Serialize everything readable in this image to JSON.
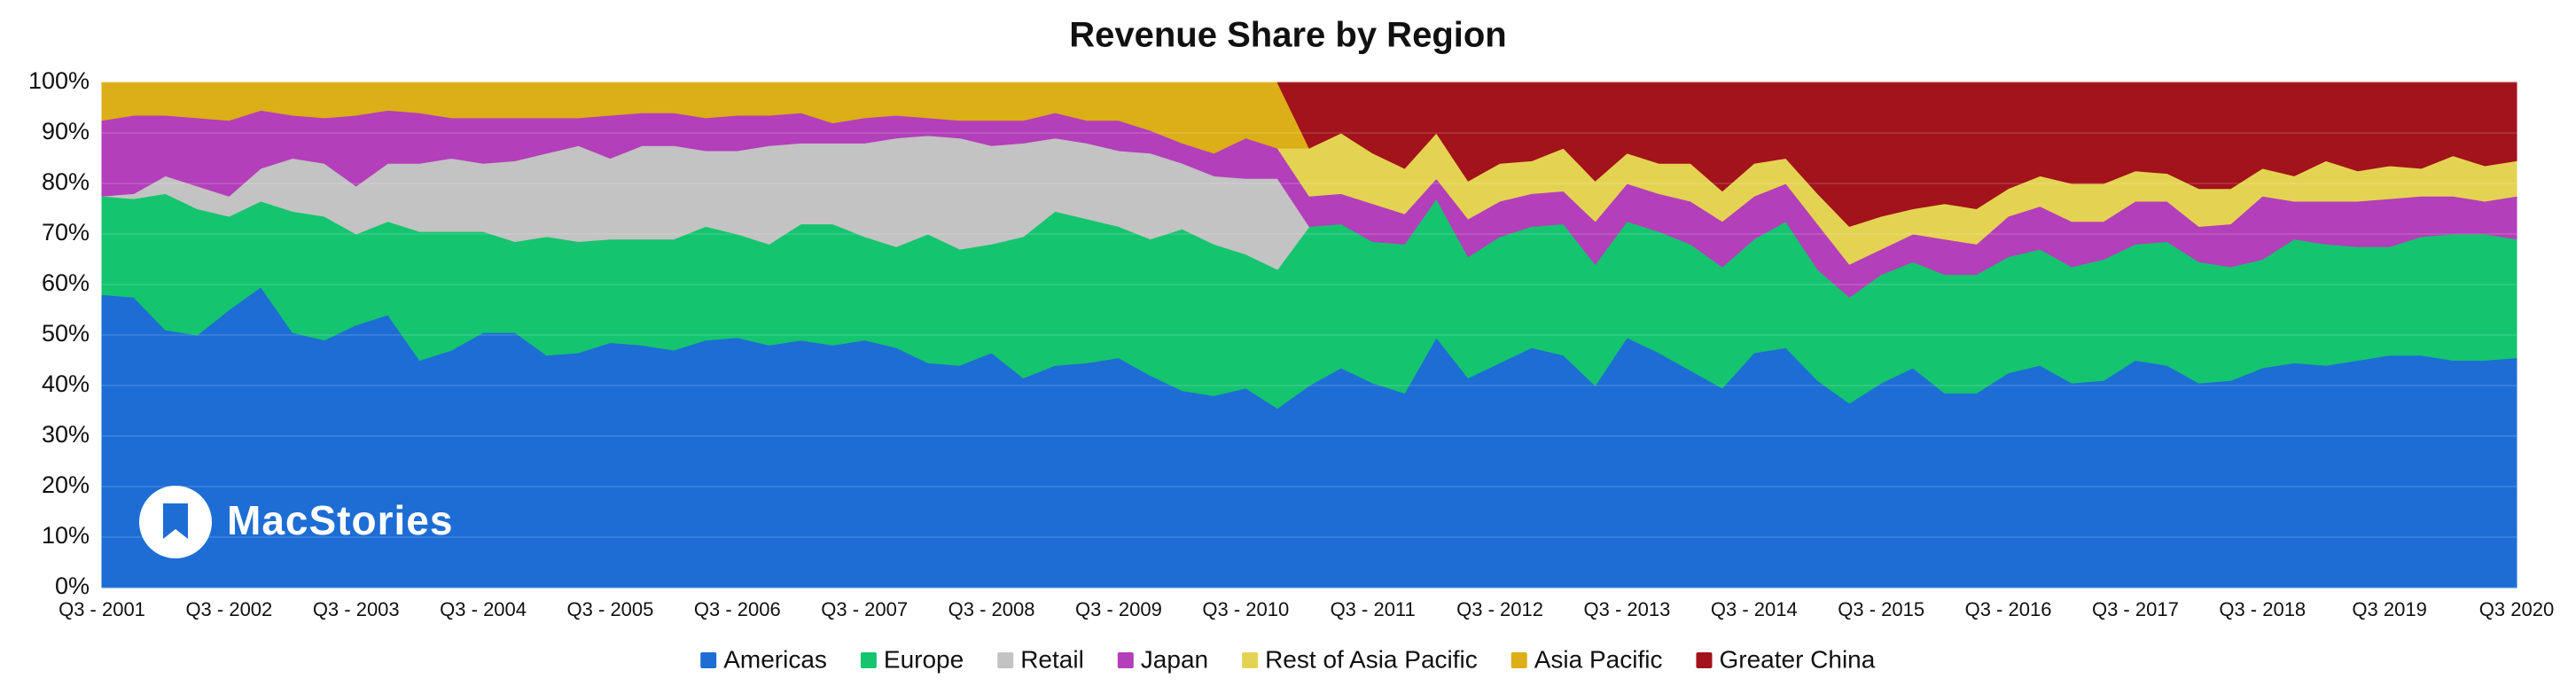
{
  "logo": {
    "text": "MacStories"
  },
  "chart_data": {
    "type": "area",
    "stacked": true,
    "title": "Revenue Share by Region",
    "categories": [
      "Q3 - 2001",
      null,
      null,
      null,
      "Q3 - 2002",
      null,
      null,
      null,
      "Q3 - 2003",
      null,
      null,
      null,
      "Q3 - 2004",
      null,
      null,
      null,
      "Q3 - 2005",
      null,
      null,
      null,
      "Q3 - 2006",
      null,
      null,
      null,
      "Q3 - 2007",
      null,
      null,
      null,
      "Q3 - 2008",
      null,
      null,
      null,
      "Q3 - 2009",
      null,
      null,
      null,
      "Q3 - 2010",
      null,
      null,
      null,
      "Q3 - 2011",
      null,
      null,
      null,
      "Q3 - 2012",
      null,
      null,
      null,
      "Q3 - 2013",
      null,
      null,
      null,
      "Q3 - 2014",
      null,
      null,
      null,
      "Q3 - 2015",
      null,
      null,
      null,
      "Q3 - 2016",
      null,
      null,
      null,
      "Q3 - 2017",
      null,
      null,
      null,
      "Q3 - 2018",
      null,
      null,
      null,
      "Q3 2019",
      null,
      null,
      null,
      "Q3 2020"
    ],
    "series": [
      {
        "name": "Americas",
        "color": "#1d6dd5",
        "values": [
          58,
          57.5,
          51,
          50,
          55,
          59.5,
          50.5,
          49,
          52,
          54,
          45,
          47,
          50.5,
          50.5,
          46,
          46.5,
          48.5,
          48,
          47,
          49,
          49.5,
          48,
          49,
          48,
          49,
          47.5,
          44.5,
          44,
          46.5,
          41.5,
          44,
          44.5,
          45.5,
          42,
          39,
          38,
          39.5,
          35.5,
          40,
          43.5,
          40.5,
          38.5,
          49.5,
          41.5,
          44.5,
          47.5,
          46,
          40,
          49.5,
          46.5,
          43,
          39.5,
          46.5,
          47.5,
          41,
          36.5,
          40.5,
          43.5,
          38.5,
          38.5,
          42.5,
          44,
          40.5,
          41,
          45,
          44,
          40.5,
          41,
          43.5,
          44.5,
          44,
          45,
          46,
          46,
          45,
          45,
          45.5
        ]
      },
      {
        "name": "Europe",
        "color": "#15c46f",
        "values": [
          19.5,
          19.5,
          27,
          25,
          18.5,
          17,
          24,
          24.5,
          18,
          18.5,
          25.5,
          23.5,
          20,
          18,
          23.5,
          22,
          20.5,
          21,
          22,
          22.5,
          20.5,
          20,
          23,
          24,
          20.5,
          20,
          25.5,
          23,
          21.5,
          28,
          30.5,
          28.5,
          26,
          27,
          32,
          30,
          26.5,
          27.5,
          31.5,
          28.5,
          28,
          29.5,
          27.5,
          24,
          25,
          24,
          26,
          24,
          23,
          24,
          25,
          24,
          22.5,
          25,
          22,
          21,
          21.5,
          21,
          23.5,
          23.5,
          23,
          23,
          23,
          24,
          23,
          24.5,
          24,
          22.5,
          21.5,
          24.5,
          24,
          22.5,
          21.5,
          23.5,
          25,
          25,
          23.5
        ]
      },
      {
        "name": "Retail",
        "color": "#c3c3c3",
        "values": [
          0,
          1,
          3.5,
          4.5,
          4,
          6.5,
          10.5,
          10.5,
          9.5,
          11.5,
          13.5,
          14.5,
          13.5,
          16,
          16.5,
          19,
          16,
          18.5,
          18.5,
          15,
          16.5,
          19.5,
          16,
          16,
          18.5,
          21.5,
          19.5,
          22,
          19.5,
          18.5,
          14.5,
          15,
          15,
          17,
          13,
          13.5,
          15,
          18,
          null,
          null,
          null,
          null,
          null,
          null,
          null,
          null,
          null,
          null,
          null,
          null,
          null,
          null,
          null,
          null,
          null,
          null,
          null,
          null,
          null,
          null,
          null,
          null,
          null,
          null,
          null,
          null,
          null,
          null,
          null,
          null,
          null,
          null,
          null,
          null,
          null,
          null,
          null
        ]
      },
      {
        "name": "Japan",
        "color": "#b33fba",
        "values": [
          15,
          15.5,
          12,
          13.5,
          15,
          11.5,
          8.5,
          9,
          14,
          10.5,
          10,
          8,
          9,
          8.5,
          7,
          5.5,
          8.5,
          6.5,
          6.5,
          6.5,
          7,
          6,
          6,
          4,
          5,
          4.5,
          3.5,
          3.5,
          5,
          4.5,
          5,
          4.5,
          6,
          4.5,
          4,
          4.5,
          8,
          6,
          6,
          6,
          7.5,
          6,
          4,
          7.5,
          7,
          6.5,
          6.5,
          8.5,
          7.5,
          7.5,
          8.5,
          9,
          8.5,
          7.5,
          9,
          6.5,
          5,
          5.5,
          7,
          6,
          8,
          8.5,
          9,
          7.5,
          8.5,
          8,
          7,
          8.5,
          12.5,
          7.5,
          8.5,
          9,
          9.5,
          8,
          7.5,
          6.5,
          8.5
        ]
      },
      {
        "name": "Rest of Asia Pacific",
        "color": "#e4d352",
        "values": [
          null,
          null,
          null,
          null,
          null,
          null,
          null,
          null,
          null,
          null,
          null,
          null,
          null,
          null,
          null,
          null,
          null,
          null,
          null,
          null,
          null,
          null,
          null,
          null,
          null,
          null,
          null,
          null,
          null,
          null,
          null,
          null,
          null,
          null,
          null,
          null,
          null,
          null,
          9.5,
          12,
          10,
          9,
          9,
          7.5,
          7.5,
          6.5,
          8.5,
          8,
          6,
          6,
          7.5,
          6,
          6.5,
          5,
          6,
          7.5,
          6.5,
          5,
          7,
          7,
          5.5,
          6,
          7.5,
          7.5,
          6,
          5.5,
          7.5,
          7,
          5.5,
          5,
          8,
          6,
          6.5,
          5.5,
          8,
          7,
          7
        ]
      },
      {
        "name": "Asia Pacific",
        "color": "#dcae17",
        "values": [
          7.5,
          6.5,
          6.5,
          7,
          7.5,
          5.5,
          6.5,
          7,
          6.5,
          5.5,
          6,
          7,
          7,
          7,
          7,
          7,
          6.5,
          6,
          6,
          7,
          6.5,
          6.5,
          6,
          8,
          7,
          6.5,
          7,
          7.5,
          7.5,
          7.5,
          6,
          7.5,
          7.5,
          9.5,
          12,
          14,
          11,
          13,
          null,
          null,
          null,
          null,
          null,
          null,
          null,
          null,
          null,
          null,
          null,
          null,
          null,
          null,
          null,
          null,
          null,
          null,
          null,
          null,
          null,
          null,
          null,
          null,
          null,
          null,
          null,
          null,
          null,
          null,
          null,
          null,
          null,
          null,
          null,
          null,
          null,
          null,
          null
        ]
      },
      {
        "name": "Greater China",
        "color": "#a2131b",
        "values": [
          null,
          null,
          null,
          null,
          null,
          null,
          null,
          null,
          null,
          null,
          null,
          null,
          null,
          null,
          null,
          null,
          null,
          null,
          null,
          null,
          null,
          null,
          null,
          null,
          null,
          null,
          null,
          null,
          null,
          null,
          null,
          null,
          null,
          null,
          null,
          null,
          null,
          null,
          13,
          10,
          14,
          17,
          10,
          19.5,
          16,
          15.5,
          13,
          19.5,
          14,
          16,
          16,
          21.5,
          16,
          15,
          22,
          28.5,
          26.5,
          25,
          24,
          25,
          21,
          18.5,
          20,
          20,
          17.5,
          18,
          21,
          21,
          17,
          18.5,
          15.5,
          17.5,
          16.5,
          17,
          14.5,
          16.5,
          15.5
        ]
      }
    ],
    "ylim": [
      0,
      100
    ],
    "yticks": [
      {
        "value": 0,
        "label": "0%"
      },
      {
        "value": 10,
        "label": "10%"
      },
      {
        "value": 20,
        "label": "20%"
      },
      {
        "value": 30,
        "label": "30%"
      },
      {
        "value": 40,
        "label": "40%"
      },
      {
        "value": 50,
        "label": "50%"
      },
      {
        "value": 60,
        "label": "60%"
      },
      {
        "value": 70,
        "label": "70%"
      },
      {
        "value": 80,
        "label": "80%"
      },
      {
        "value": 90,
        "label": "90%"
      },
      {
        "value": 100,
        "label": "100%"
      }
    ],
    "grid": true,
    "legend": "bottom"
  }
}
